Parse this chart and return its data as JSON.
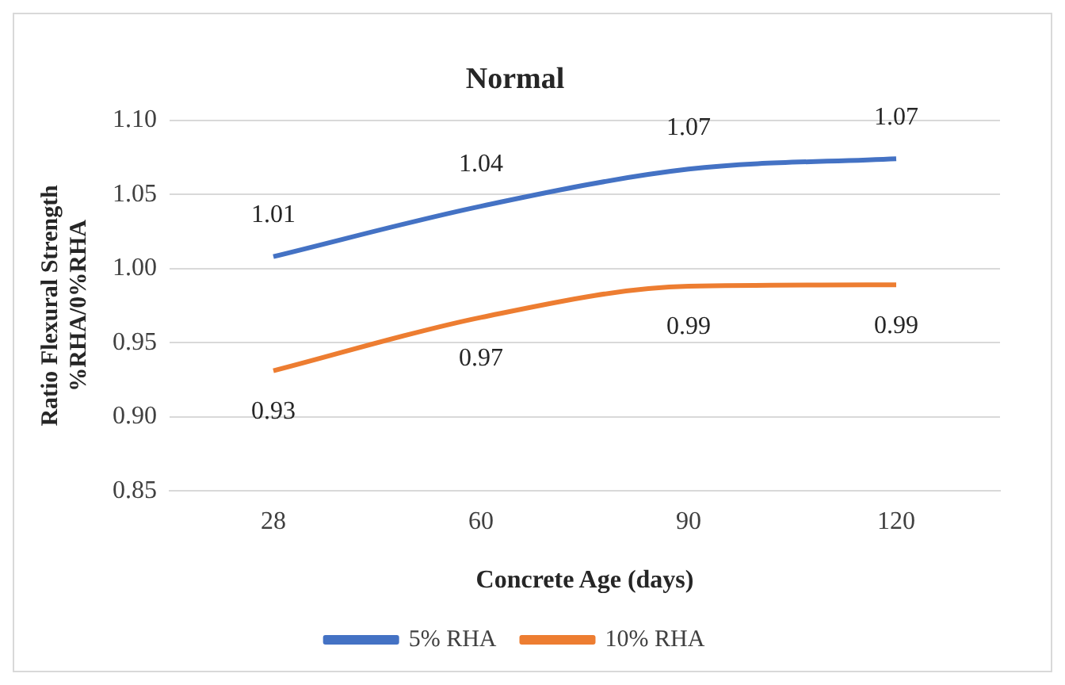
{
  "chart_data": {
    "type": "line",
    "title": "Normal",
    "xlabel": "Concrete Age (days)",
    "ylabel": "Ratio Flexural Strength\n%RHA/0%RHA",
    "categories": [
      "28",
      "60",
      "90",
      "120"
    ],
    "series": [
      {
        "name": "5% RHA",
        "color": "#4472c4",
        "values": [
          1.008,
          1.042,
          1.067,
          1.074
        ],
        "value_labels": [
          "1.01",
          "1.04",
          "1.07",
          "1.07"
        ]
      },
      {
        "name": "10% RHA",
        "color": "#ed7d31",
        "values": [
          0.931,
          0.967,
          0.988,
          0.989
        ],
        "value_labels": [
          "0.93",
          "0.97",
          "0.99",
          "0.99"
        ]
      }
    ],
    "ylim": [
      0.85,
      1.1
    ],
    "yticks": [
      {
        "value": 0.85,
        "label": "0.85"
      },
      {
        "value": 0.9,
        "label": "0.90"
      },
      {
        "value": 0.95,
        "label": "0.95"
      },
      {
        "value": 1.0,
        "label": "1.00"
      },
      {
        "value": 1.05,
        "label": "1.05"
      },
      {
        "value": 1.1,
        "label": "1.10"
      }
    ],
    "grid": "y",
    "legend": "bottom",
    "marker": "none",
    "line_style": "solid"
  }
}
